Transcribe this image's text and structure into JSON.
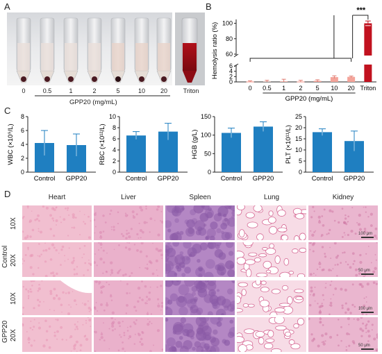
{
  "panels": {
    "A": {
      "letter": "A",
      "concentrations": [
        "0",
        "0.5",
        "1",
        "2",
        "5",
        "10",
        "20"
      ],
      "control_label": "Triton",
      "xlabel": "GPP20 (mg/mL)"
    },
    "D": {
      "letter": "D",
      "tissues": [
        "Heart",
        "Liver",
        "Spleen",
        "Lung",
        "Kidney"
      ],
      "groups": [
        "Control",
        "GPP20"
      ],
      "magnifications": [
        "10X",
        "20X"
      ],
      "scalebars": [
        "100 μm",
        "50 μm",
        "100 μm",
        "50 μm"
      ]
    }
  },
  "chart_data": [
    {
      "id": "B",
      "letter": "B",
      "type": "bar",
      "ylabel": "Hemolysis ratio (%)",
      "xlabel": "GPP20 (mg/mL)",
      "categories": [
        "0",
        "0.5",
        "1",
        "2",
        "5",
        "10",
        "20",
        "Triton"
      ],
      "values": [
        0,
        0.1,
        0.2,
        0,
        0.4,
        1.8,
        1.9,
        100
      ],
      "errors": [
        0.4,
        0.5,
        0.8,
        0.6,
        0.4,
        0.5,
        0.3,
        3
      ],
      "yticks_lower": [
        "0",
        "2",
        "4",
        "6"
      ],
      "yticks_upper": [
        "60",
        "80",
        "100"
      ],
      "ylim_lower": [
        0,
        6
      ],
      "ylim_upper": [
        60,
        105
      ],
      "broken_axis": true,
      "significance": "***",
      "color_normal": "#f4a49a",
      "color_control": "#c1121f"
    },
    {
      "id": "C1",
      "letter": "C",
      "type": "bar",
      "ylabel": "WBC (×10⁹/L)",
      "categories": [
        "Control",
        "GPP20"
      ],
      "values": [
        4.2,
        3.9
      ],
      "errors": [
        1.8,
        1.6
      ],
      "ylim": [
        0,
        8
      ],
      "yticks": [
        "0",
        "2",
        "4",
        "6",
        "8"
      ],
      "color": "#1f7fc1"
    },
    {
      "id": "C2",
      "type": "bar",
      "ylabel": "RBC (×10¹²/L)",
      "categories": [
        "Control",
        "GPP20"
      ],
      "values": [
        6.6,
        7.3
      ],
      "errors": [
        0.7,
        1.5
      ],
      "ylim": [
        0,
        10
      ],
      "yticks": [
        "0",
        "2",
        "4",
        "6",
        "8",
        "10"
      ],
      "color": "#1f7fc1"
    },
    {
      "id": "C3",
      "type": "bar",
      "ylabel": "HGB (g/L)",
      "categories": [
        "Control",
        "GPP20"
      ],
      "values": [
        106,
        123
      ],
      "errors": [
        13,
        13
      ],
      "ylim": [
        0,
        150
      ],
      "yticks": [
        "0",
        "50",
        "100",
        "150"
      ],
      "color": "#1f7fc1"
    },
    {
      "id": "C4",
      "type": "bar",
      "ylabel": "PLT (×10¹¹/L)",
      "categories": [
        "Control",
        "GPP20"
      ],
      "values": [
        18,
        14
      ],
      "errors": [
        1.5,
        4.5
      ],
      "ylim": [
        0,
        25
      ],
      "yticks": [
        "0",
        "5",
        "10",
        "15",
        "20",
        "25"
      ],
      "color": "#1f7fc1"
    }
  ]
}
